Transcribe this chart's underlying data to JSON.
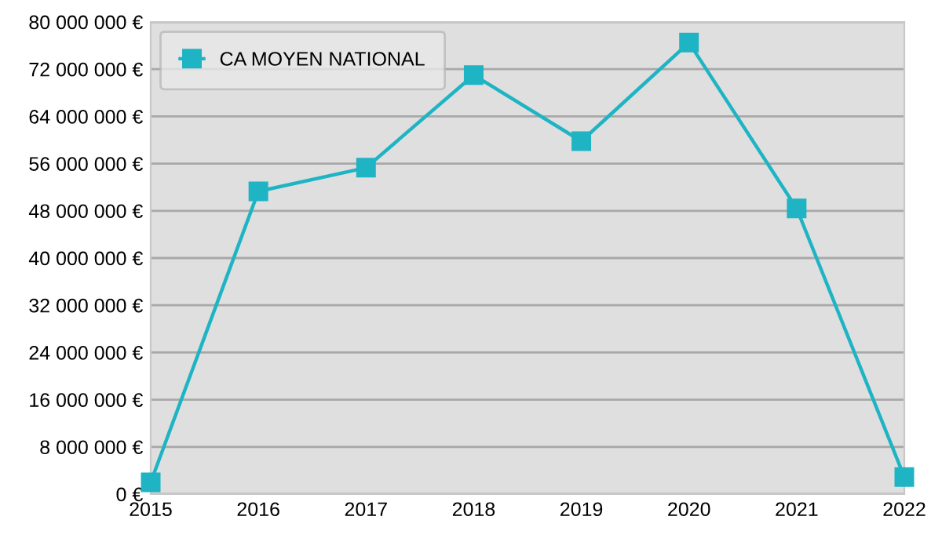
{
  "chart_data": {
    "type": "line",
    "x": [
      2015,
      2016,
      2017,
      2018,
      2019,
      2020,
      2021,
      2022
    ],
    "series": [
      {
        "name": "CA MOYEN NATIONAL",
        "color": "#1fb4c4",
        "values": [
          2000000,
          51300000,
          55300000,
          71000000,
          59800000,
          76500000,
          48400000,
          2900000
        ]
      }
    ],
    "xlim": [
      2015,
      2022
    ],
    "xticks": [
      2015,
      2016,
      2017,
      2018,
      2019,
      2020,
      2021,
      2022
    ],
    "ylim": [
      0,
      80000000
    ],
    "yticks": [
      {
        "value": 0,
        "label": "0 €"
      },
      {
        "value": 8000000,
        "label": "8 000 000 €"
      },
      {
        "value": 16000000,
        "label": "16 000 000 €"
      },
      {
        "value": 24000000,
        "label": "24 000 000 €"
      },
      {
        "value": 32000000,
        "label": "32 000 000 €"
      },
      {
        "value": 40000000,
        "label": "40 000 000 €"
      },
      {
        "value": 48000000,
        "label": "48 000 000 €"
      },
      {
        "value": 56000000,
        "label": "56 000 000 €"
      },
      {
        "value": 64000000,
        "label": "64 000 000 €"
      },
      {
        "value": 72000000,
        "label": "72 000 000 €"
      },
      {
        "value": 80000000,
        "label": "80 000 000 €"
      }
    ],
    "grid": "y",
    "legend": "top left",
    "marker": "square",
    "line_style": "solid"
  }
}
